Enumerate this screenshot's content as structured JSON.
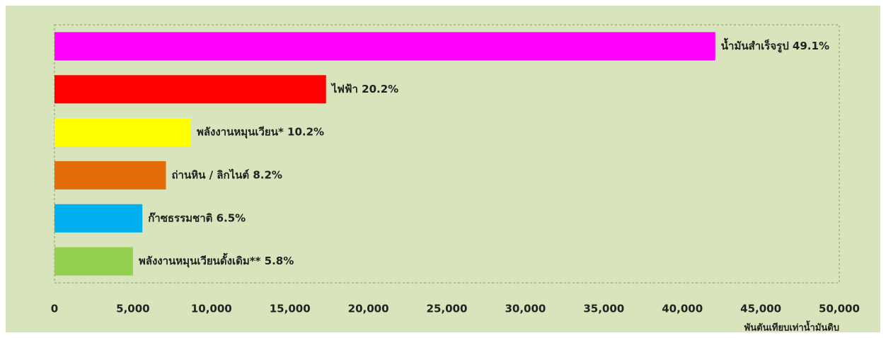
{
  "chart_data": {
    "type": "barh",
    "categories": [
      "น้ำมันสำเร็จรูป 49.1%",
      "ไฟฟ้า 20.2%",
      "พลังงานหมุนเวียน* 10.2%",
      "ถ่านหิน / ลิกไนต์ 8.2%",
      "ก๊าซธรรมชาติ 6.5%",
      "พลังงานหมุนเวียนดั้งเดิม** 5.8%"
    ],
    "values": [
      42100,
      17300,
      8700,
      7100,
      5600,
      5000
    ],
    "colors": [
      "#ff00ff",
      "#ff0000",
      "#ffff00",
      "#e46c0a",
      "#00b0f0",
      "#92d050"
    ],
    "xlabel": "พันตันเทียบเท่าน้ำมันดิบ",
    "xlim": [
      0,
      50000
    ],
    "xticks": [
      0,
      {
        "value": 5000,
        "label": "5,000"
      },
      {
        "value": 10000,
        "label": "10,000"
      },
      {
        "value": 15000,
        "label": "15,000"
      },
      {
        "value": 20000,
        "label": "20,000"
      },
      {
        "value": 25000,
        "label": "25,000"
      },
      {
        "value": 30000,
        "label": "30,000"
      },
      {
        "value": 35000,
        "label": "35,000"
      },
      {
        "value": 40000,
        "label": "40,000"
      },
      {
        "value": 45000,
        "label": "45,000"
      },
      {
        "value": 50000,
        "label": "50,000"
      }
    ]
  }
}
